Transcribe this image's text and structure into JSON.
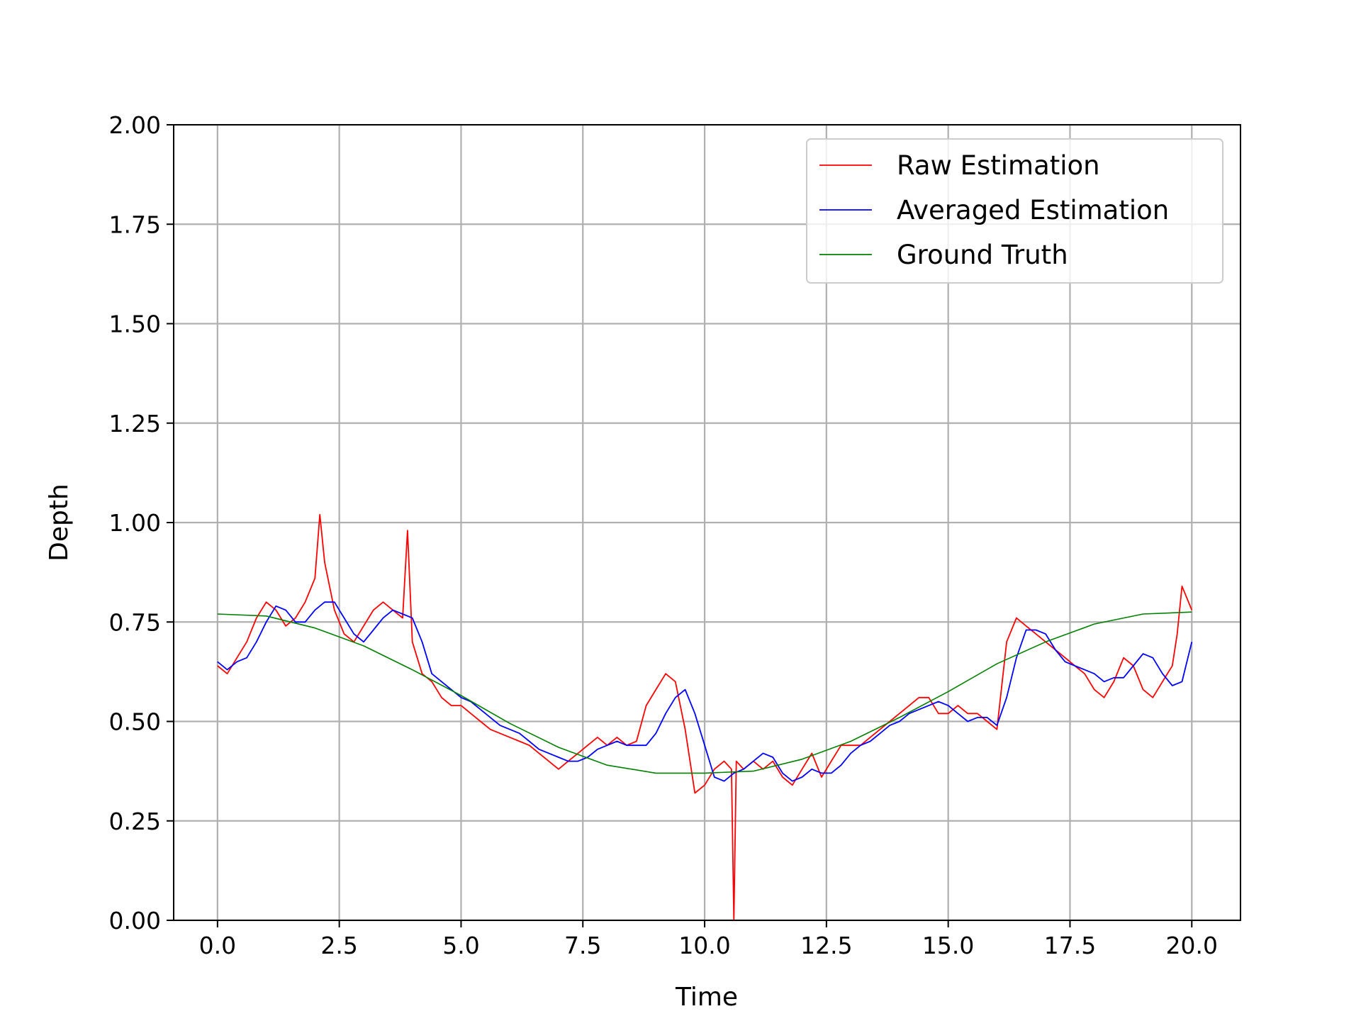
{
  "chart_data": {
    "type": "line",
    "title": "",
    "xlabel": "Time",
    "ylabel": "Depth",
    "xlim": [
      -0.9,
      21.0
    ],
    "ylim": [
      0.0,
      2.0
    ],
    "xticks": [
      "0.0",
      "2.5",
      "5.0",
      "7.5",
      "10.0",
      "12.5",
      "15.0",
      "17.5",
      "20.0"
    ],
    "yticks": [
      "0.00",
      "0.25",
      "0.50",
      "0.75",
      "1.00",
      "1.25",
      "1.50",
      "1.75",
      "2.00"
    ],
    "grid": true,
    "legend_position": "top-right",
    "series": [
      {
        "name": "Raw Estimation",
        "color": "#ff0000",
        "x": [
          0.0,
          0.2,
          0.4,
          0.6,
          0.8,
          1.0,
          1.2,
          1.4,
          1.6,
          1.8,
          2.0,
          2.1,
          2.2,
          2.4,
          2.6,
          2.8,
          3.0,
          3.2,
          3.4,
          3.6,
          3.8,
          3.9,
          4.0,
          4.2,
          4.4,
          4.6,
          4.8,
          5.0,
          5.2,
          5.4,
          5.6,
          5.8,
          6.0,
          6.2,
          6.4,
          6.6,
          6.8,
          7.0,
          7.2,
          7.4,
          7.6,
          7.8,
          8.0,
          8.2,
          8.4,
          8.6,
          8.8,
          9.0,
          9.2,
          9.4,
          9.6,
          9.8,
          10.0,
          10.2,
          10.4,
          10.55,
          10.6,
          10.65,
          10.8,
          11.0,
          11.2,
          11.4,
          11.6,
          11.8,
          12.0,
          12.2,
          12.4,
          12.6,
          12.8,
          13.0,
          13.2,
          13.4,
          13.6,
          13.8,
          14.0,
          14.2,
          14.4,
          14.6,
          14.8,
          15.0,
          15.2,
          15.4,
          15.6,
          15.8,
          16.0,
          16.2,
          16.4,
          16.6,
          16.8,
          17.0,
          17.2,
          17.4,
          17.6,
          17.8,
          18.0,
          18.2,
          18.4,
          18.6,
          18.8,
          19.0,
          19.2,
          19.4,
          19.6,
          19.7,
          19.8,
          20.0
        ],
        "values": [
          0.64,
          0.62,
          0.66,
          0.7,
          0.76,
          0.8,
          0.78,
          0.74,
          0.76,
          0.8,
          0.86,
          1.02,
          0.9,
          0.78,
          0.72,
          0.7,
          0.74,
          0.78,
          0.8,
          0.78,
          0.76,
          0.98,
          0.7,
          0.62,
          0.6,
          0.56,
          0.54,
          0.54,
          0.52,
          0.5,
          0.48,
          0.47,
          0.46,
          0.45,
          0.44,
          0.42,
          0.4,
          0.38,
          0.4,
          0.42,
          0.44,
          0.46,
          0.44,
          0.46,
          0.44,
          0.45,
          0.54,
          0.58,
          0.62,
          0.6,
          0.48,
          0.32,
          0.34,
          0.38,
          0.4,
          0.38,
          0.0,
          0.4,
          0.38,
          0.4,
          0.38,
          0.4,
          0.36,
          0.34,
          0.38,
          0.42,
          0.36,
          0.4,
          0.44,
          0.44,
          0.44,
          0.46,
          0.48,
          0.5,
          0.52,
          0.54,
          0.56,
          0.56,
          0.52,
          0.52,
          0.54,
          0.52,
          0.52,
          0.5,
          0.48,
          0.7,
          0.76,
          0.74,
          0.72,
          0.7,
          0.68,
          0.66,
          0.64,
          0.62,
          0.58,
          0.56,
          0.6,
          0.66,
          0.64,
          0.58,
          0.56,
          0.6,
          0.64,
          0.72,
          0.84,
          0.78
        ]
      },
      {
        "name": "Averaged Estimation",
        "color": "#0000ff",
        "x": [
          0.0,
          0.2,
          0.4,
          0.6,
          0.8,
          1.0,
          1.2,
          1.4,
          1.6,
          1.8,
          2.0,
          2.2,
          2.4,
          2.6,
          2.8,
          3.0,
          3.2,
          3.4,
          3.6,
          3.8,
          4.0,
          4.2,
          4.4,
          4.6,
          4.8,
          5.0,
          5.2,
          5.4,
          5.6,
          5.8,
          6.0,
          6.2,
          6.4,
          6.6,
          6.8,
          7.0,
          7.2,
          7.4,
          7.6,
          7.8,
          8.0,
          8.2,
          8.4,
          8.6,
          8.8,
          9.0,
          9.2,
          9.4,
          9.6,
          9.8,
          10.0,
          10.2,
          10.4,
          10.6,
          10.8,
          11.0,
          11.2,
          11.4,
          11.6,
          11.8,
          12.0,
          12.2,
          12.4,
          12.6,
          12.8,
          13.0,
          13.2,
          13.4,
          13.6,
          13.8,
          14.0,
          14.2,
          14.4,
          14.6,
          14.8,
          15.0,
          15.2,
          15.4,
          15.6,
          15.8,
          16.0,
          16.2,
          16.4,
          16.6,
          16.8,
          17.0,
          17.2,
          17.4,
          17.6,
          17.8,
          18.0,
          18.2,
          18.4,
          18.6,
          18.8,
          19.0,
          19.2,
          19.4,
          19.6,
          19.8,
          20.0
        ],
        "values": [
          0.65,
          0.63,
          0.65,
          0.66,
          0.7,
          0.75,
          0.79,
          0.78,
          0.75,
          0.75,
          0.78,
          0.8,
          0.8,
          0.76,
          0.72,
          0.7,
          0.73,
          0.76,
          0.78,
          0.77,
          0.76,
          0.7,
          0.62,
          0.6,
          0.58,
          0.56,
          0.55,
          0.53,
          0.51,
          0.49,
          0.48,
          0.47,
          0.45,
          0.43,
          0.42,
          0.41,
          0.4,
          0.4,
          0.41,
          0.43,
          0.44,
          0.45,
          0.44,
          0.44,
          0.44,
          0.47,
          0.52,
          0.56,
          0.58,
          0.52,
          0.44,
          0.36,
          0.35,
          0.37,
          0.38,
          0.4,
          0.42,
          0.41,
          0.37,
          0.35,
          0.36,
          0.38,
          0.37,
          0.37,
          0.39,
          0.42,
          0.44,
          0.45,
          0.47,
          0.49,
          0.5,
          0.52,
          0.53,
          0.54,
          0.55,
          0.54,
          0.52,
          0.5,
          0.51,
          0.51,
          0.49,
          0.56,
          0.66,
          0.73,
          0.73,
          0.72,
          0.68,
          0.65,
          0.64,
          0.63,
          0.62,
          0.6,
          0.61,
          0.61,
          0.64,
          0.67,
          0.66,
          0.62,
          0.59,
          0.6,
          0.7
        ]
      },
      {
        "name": "Ground Truth",
        "color": "#008000",
        "x": [
          0.0,
          1.0,
          2.0,
          3.0,
          4.0,
          5.0,
          6.0,
          7.0,
          8.0,
          9.0,
          10.0,
          11.0,
          12.0,
          13.0,
          14.0,
          15.0,
          16.0,
          17.0,
          18.0,
          19.0,
          20.0
        ],
        "values": [
          0.77,
          0.765,
          0.735,
          0.69,
          0.63,
          0.565,
          0.495,
          0.435,
          0.39,
          0.37,
          0.37,
          0.375,
          0.405,
          0.45,
          0.51,
          0.575,
          0.645,
          0.7,
          0.745,
          0.77,
          0.775
        ]
      }
    ]
  }
}
